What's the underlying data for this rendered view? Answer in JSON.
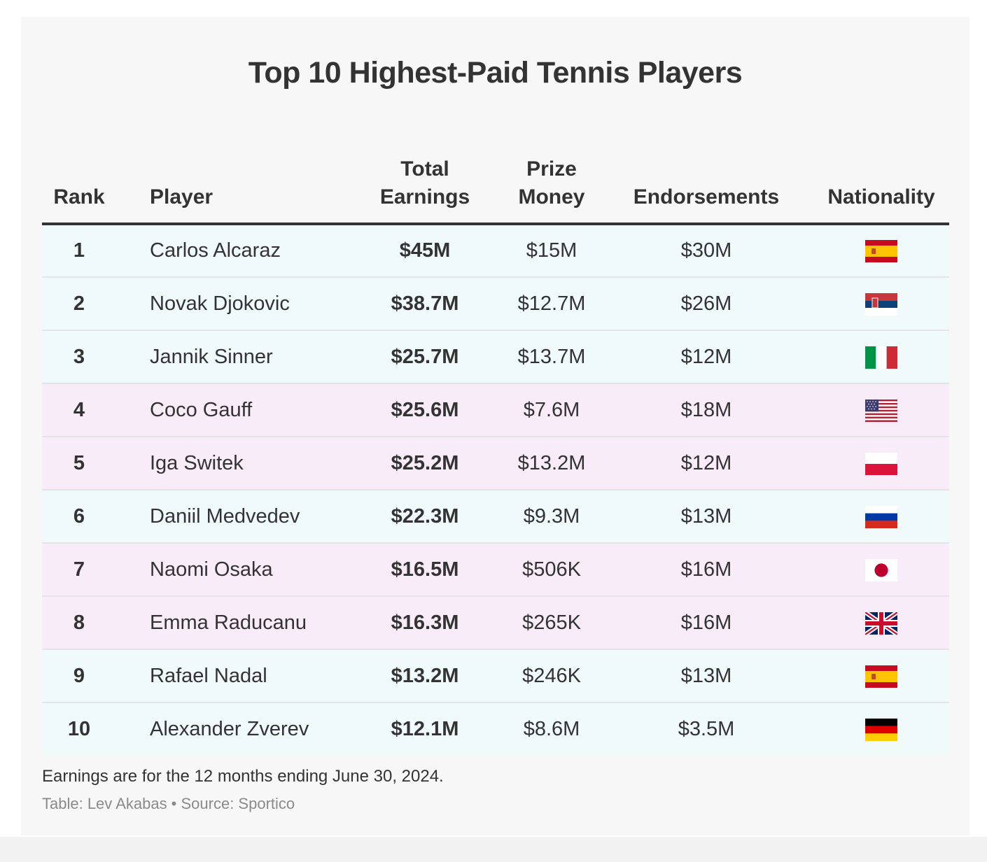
{
  "title": "Top 10 Highest-Paid Tennis Players",
  "chart_data": {
    "type": "table",
    "title": "Top 10 Highest-Paid Tennis Players",
    "columns": [
      {
        "line1": "",
        "line2": "Rank"
      },
      {
        "line1": "",
        "line2": "Player"
      },
      {
        "line1": "Total",
        "line2": "Earnings"
      },
      {
        "line1": "Prize",
        "line2": "Money"
      },
      {
        "line1": "",
        "line2": "Endorsements"
      },
      {
        "line1": "",
        "line2": "Nationality"
      }
    ],
    "rows": [
      {
        "rank": "1",
        "player": "Carlos Alcaraz",
        "total": "$45M",
        "prize": "$15M",
        "endorsements": "$30M",
        "flag": "spain-flag-icon",
        "band": "teal"
      },
      {
        "rank": "2",
        "player": "Novak Djokovic",
        "total": "$38.7M",
        "prize": "$12.7M",
        "endorsements": "$26M",
        "flag": "serbia-flag-icon",
        "band": "teal"
      },
      {
        "rank": "3",
        "player": "Jannik Sinner",
        "total": "$25.7M",
        "prize": "$13.7M",
        "endorsements": "$12M",
        "flag": "italy-flag-icon",
        "band": "teal"
      },
      {
        "rank": "4",
        "player": "Coco Gauff",
        "total": "$25.6M",
        "prize": "$7.6M",
        "endorsements": "$18M",
        "flag": "usa-flag-icon",
        "band": "pink",
        "faded_endorsements": true
      },
      {
        "rank": "5",
        "player": "Iga Switek",
        "total": "$25.2M",
        "prize": "$13.2M",
        "endorsements": "$12M",
        "flag": "poland-flag-icon",
        "band": "pink"
      },
      {
        "rank": "6",
        "player": "Daniil Medvedev",
        "total": "$22.3M",
        "prize": "$9.3M",
        "endorsements": "$13M",
        "flag": "russia-flag-icon",
        "band": "teal"
      },
      {
        "rank": "7",
        "player": "Naomi Osaka",
        "total": "$16.5M",
        "prize": "$506K",
        "endorsements": "$16M",
        "flag": "japan-flag-icon",
        "band": "pink"
      },
      {
        "rank": "8",
        "player": "Emma Raducanu",
        "total": "$16.3M",
        "prize": "$265K",
        "endorsements": "$16M",
        "flag": "uk-flag-icon",
        "band": "pink"
      },
      {
        "rank": "9",
        "player": "Rafael Nadal",
        "total": "$13.2M",
        "prize": "$246K",
        "endorsements": "$13M",
        "flag": "spain-flag-icon",
        "band": "teal"
      },
      {
        "rank": "10",
        "player": "Alexander Zverev",
        "total": "$12.1M",
        "prize": "$8.6M",
        "endorsements": "$3.5M",
        "flag": "germany-flag-icon",
        "band": "teal"
      }
    ]
  },
  "note": "Earnings are for the 12 months ending June 30, 2024.",
  "credit": "Table: Lev Akabas • Source: Sportico",
  "colors": {
    "panel_bg": "#f7f7f7",
    "row_teal": "#f0fafa",
    "row_pink": "#f7ecf7",
    "text": "#333333",
    "credit": "#8a8a8a"
  }
}
